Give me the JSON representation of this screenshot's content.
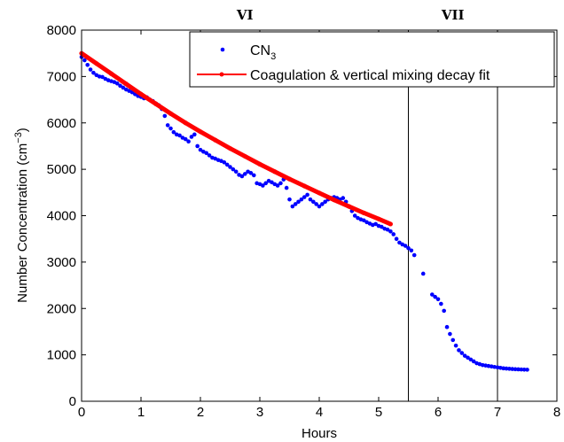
{
  "chart_data": {
    "type": "scatter",
    "xlabel": "Hours",
    "ylabel_main": "Number Concentration (cm",
    "ylabel_sup": "−3",
    "ylabel_close": ")",
    "xlim": [
      0,
      8
    ],
    "ylim": [
      0,
      8000
    ],
    "x_ticks": [
      0,
      1,
      2,
      3,
      4,
      5,
      6,
      7,
      8
    ],
    "y_ticks": [
      0,
      1000,
      2000,
      3000,
      4000,
      5000,
      6000,
      7000,
      8000
    ],
    "grid": false,
    "legend_position": "top-right",
    "legend": {
      "cn3_main": "CN",
      "cn3_sub": "3",
      "fit_label": "Coagulation & vertical mixing decay fit"
    },
    "region_lines": [
      5.5,
      7.0
    ],
    "region_labels": [
      {
        "text": "VI",
        "x": 2.75
      },
      {
        "text": "VII",
        "x": 6.25
      }
    ],
    "colors": {
      "cn3": "#0000ff",
      "fit": "#ff0000"
    },
    "series": [
      {
        "name": "CN3",
        "points": [
          [
            0.0,
            7420
          ],
          [
            0.05,
            7350
          ],
          [
            0.1,
            7250
          ],
          [
            0.15,
            7150
          ],
          [
            0.2,
            7080
          ],
          [
            0.25,
            7030
          ],
          [
            0.3,
            7000
          ],
          [
            0.35,
            6990
          ],
          [
            0.4,
            6950
          ],
          [
            0.45,
            6920
          ],
          [
            0.5,
            6900
          ],
          [
            0.55,
            6880
          ],
          [
            0.6,
            6850
          ],
          [
            0.65,
            6800
          ],
          [
            0.7,
            6760
          ],
          [
            0.75,
            6720
          ],
          [
            0.8,
            6690
          ],
          [
            0.85,
            6660
          ],
          [
            0.9,
            6620
          ],
          [
            0.95,
            6580
          ],
          [
            1.0,
            6560
          ],
          [
            1.05,
            6530
          ],
          [
            1.1,
            6550
          ],
          [
            1.15,
            6500
          ],
          [
            1.2,
            6470
          ],
          [
            1.25,
            6420
          ],
          [
            1.3,
            6380
          ],
          [
            1.35,
            6300
          ],
          [
            1.4,
            6150
          ],
          [
            1.45,
            5950
          ],
          [
            1.5,
            5880
          ],
          [
            1.55,
            5800
          ],
          [
            1.6,
            5750
          ],
          [
            1.65,
            5730
          ],
          [
            1.7,
            5680
          ],
          [
            1.75,
            5650
          ],
          [
            1.8,
            5600
          ],
          [
            1.85,
            5700
          ],
          [
            1.9,
            5750
          ],
          [
            1.95,
            5500
          ],
          [
            2.0,
            5420
          ],
          [
            2.05,
            5380
          ],
          [
            2.1,
            5350
          ],
          [
            2.15,
            5300
          ],
          [
            2.2,
            5250
          ],
          [
            2.25,
            5230
          ],
          [
            2.3,
            5200
          ],
          [
            2.35,
            5180
          ],
          [
            2.4,
            5150
          ],
          [
            2.45,
            5100
          ],
          [
            2.5,
            5050
          ],
          [
            2.55,
            5000
          ],
          [
            2.6,
            4950
          ],
          [
            2.65,
            4880
          ],
          [
            2.7,
            4850
          ],
          [
            2.75,
            4900
          ],
          [
            2.8,
            4950
          ],
          [
            2.85,
            4920
          ],
          [
            2.9,
            4870
          ],
          [
            2.95,
            4700
          ],
          [
            3.0,
            4680
          ],
          [
            3.05,
            4650
          ],
          [
            3.1,
            4700
          ],
          [
            3.15,
            4750
          ],
          [
            3.2,
            4720
          ],
          [
            3.25,
            4680
          ],
          [
            3.3,
            4650
          ],
          [
            3.35,
            4700
          ],
          [
            3.4,
            4780
          ],
          [
            3.45,
            4600
          ],
          [
            3.5,
            4350
          ],
          [
            3.55,
            4200
          ],
          [
            3.6,
            4250
          ],
          [
            3.65,
            4300
          ],
          [
            3.7,
            4350
          ],
          [
            3.75,
            4400
          ],
          [
            3.8,
            4450
          ],
          [
            3.85,
            4350
          ],
          [
            3.9,
            4300
          ],
          [
            3.95,
            4250
          ],
          [
            4.0,
            4200
          ],
          [
            4.05,
            4250
          ],
          [
            4.1,
            4300
          ],
          [
            4.15,
            4350
          ],
          [
            4.2,
            4380
          ],
          [
            4.25,
            4400
          ],
          [
            4.3,
            4380
          ],
          [
            4.35,
            4350
          ],
          [
            4.4,
            4380
          ],
          [
            4.45,
            4300
          ],
          [
            4.5,
            4200
          ],
          [
            4.55,
            4100
          ],
          [
            4.6,
            4000
          ],
          [
            4.65,
            3950
          ],
          [
            4.7,
            3920
          ],
          [
            4.75,
            3900
          ],
          [
            4.8,
            3860
          ],
          [
            4.85,
            3830
          ],
          [
            4.9,
            3800
          ],
          [
            4.95,
            3820
          ],
          [
            5.0,
            3780
          ],
          [
            5.05,
            3760
          ],
          [
            5.1,
            3720
          ],
          [
            5.15,
            3700
          ],
          [
            5.2,
            3660
          ],
          [
            5.25,
            3600
          ],
          [
            5.3,
            3500
          ],
          [
            5.35,
            3420
          ],
          [
            5.4,
            3380
          ],
          [
            5.45,
            3350
          ],
          [
            5.5,
            3300
          ],
          [
            5.55,
            3250
          ],
          [
            5.6,
            3150
          ],
          [
            5.75,
            2750
          ],
          [
            5.9,
            2300
          ],
          [
            5.95,
            2250
          ],
          [
            6.0,
            2200
          ],
          [
            6.05,
            2100
          ],
          [
            6.1,
            1950
          ],
          [
            6.15,
            1600
          ],
          [
            6.2,
            1450
          ],
          [
            6.25,
            1320
          ],
          [
            6.3,
            1200
          ],
          [
            6.35,
            1100
          ],
          [
            6.4,
            1040
          ],
          [
            6.45,
            980
          ],
          [
            6.5,
            940
          ],
          [
            6.55,
            900
          ],
          [
            6.6,
            860
          ],
          [
            6.65,
            820
          ],
          [
            6.7,
            800
          ],
          [
            6.75,
            780
          ],
          [
            6.8,
            770
          ],
          [
            6.85,
            760
          ],
          [
            6.9,
            750
          ],
          [
            6.95,
            740
          ],
          [
            7.0,
            730
          ],
          [
            7.05,
            720
          ],
          [
            7.1,
            710
          ],
          [
            7.15,
            705
          ],
          [
            7.2,
            700
          ],
          [
            7.25,
            695
          ],
          [
            7.3,
            690
          ],
          [
            7.35,
            688
          ],
          [
            7.4,
            685
          ],
          [
            7.45,
            682
          ],
          [
            7.5,
            680
          ]
        ]
      },
      {
        "name": "Coagulation & vertical mixing decay fit",
        "points": [
          [
            0.0,
            7500
          ],
          [
            0.25,
            7280
          ],
          [
            0.5,
            7060
          ],
          [
            0.75,
            6840
          ],
          [
            1.0,
            6620
          ],
          [
            1.25,
            6410
          ],
          [
            1.5,
            6200
          ],
          [
            1.75,
            6000
          ],
          [
            2.0,
            5810
          ],
          [
            2.25,
            5630
          ],
          [
            2.5,
            5450
          ],
          [
            2.75,
            5280
          ],
          [
            3.0,
            5110
          ],
          [
            3.25,
            4950
          ],
          [
            3.5,
            4790
          ],
          [
            3.75,
            4640
          ],
          [
            4.0,
            4490
          ],
          [
            4.25,
            4340
          ],
          [
            4.5,
            4200
          ],
          [
            4.75,
            4060
          ],
          [
            5.0,
            3930
          ],
          [
            5.2,
            3820
          ]
        ]
      }
    ]
  }
}
